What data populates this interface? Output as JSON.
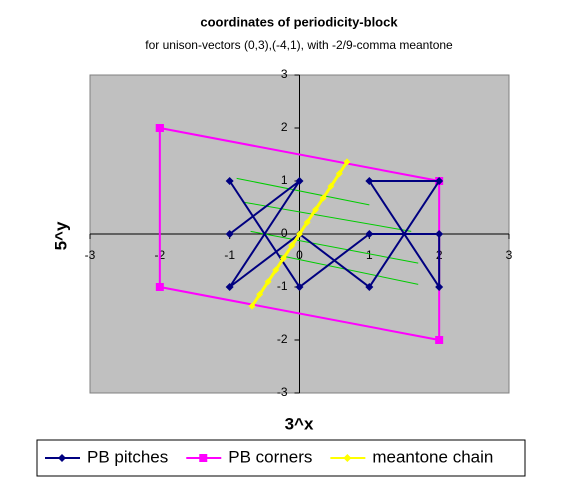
{
  "chart_data": {
    "type": "scatter",
    "title": "coordinates of periodicity-block",
    "subtitle": "for unison-vectors (0,3),(-4,1), with -2/9-comma meantone",
    "xlabel": "3^x",
    "ylabel": "5^y",
    "xlim": [
      -3,
      3
    ],
    "ylim": [
      -3,
      3
    ],
    "xticks": [
      -3,
      -2,
      -1,
      0,
      1,
      2,
      3
    ],
    "yticks": [
      -3,
      -2,
      -1,
      0,
      1,
      2,
      3
    ],
    "legend": "bottom",
    "series": [
      {
        "name": "PB pitches",
        "color": "#000080",
        "marker": "diamond",
        "x": [
          -1,
          0,
          -1,
          0,
          1,
          2,
          1,
          2,
          2,
          1,
          0,
          -1
        ],
        "values": [
          0,
          1,
          -1,
          0,
          -1,
          1,
          1,
          -1,
          0,
          0,
          -1,
          1
        ]
      },
      {
        "name": "PB corners",
        "color": "#ff00ff",
        "marker": "square",
        "x": [
          -2,
          2,
          2,
          -2,
          -2
        ],
        "values": [
          2,
          1,
          -2,
          -1,
          2
        ]
      },
      {
        "name": "meantone chain",
        "color": "#ffff00",
        "marker": "diamond",
        "x": [
          -0.68,
          -0.57,
          -0.45,
          -0.34,
          -0.23,
          -0.11,
          0,
          0.11,
          0.23,
          0.34,
          0.45,
          0.57,
          0.68
        ],
        "values": [
          -1.36,
          -1.14,
          -0.9,
          -0.68,
          -0.46,
          -0.22,
          0,
          0.22,
          0.46,
          0.68,
          0.9,
          1.14,
          1.36
        ]
      },
      {
        "color": "#00cc00",
        "marker": "none",
        "x": [
          -0.9,
          1.0,
          null,
          -0.8,
          1.6,
          null,
          -0.7,
          1.7,
          null,
          -0.3,
          1.7
        ],
        "values": [
          1.05,
          0.55,
          null,
          0.6,
          0.05,
          null,
          0.05,
          -0.55,
          null,
          -0.4,
          -0.95
        ]
      }
    ]
  }
}
